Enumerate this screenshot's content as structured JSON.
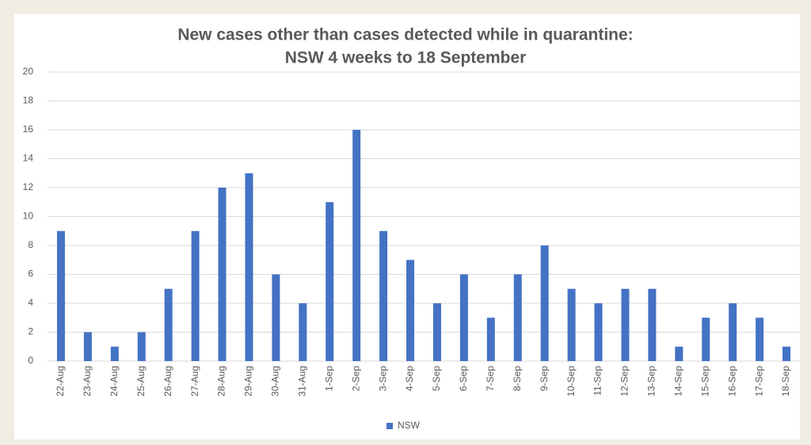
{
  "chart_data": {
    "type": "bar",
    "title": [
      "New cases other than cases detected while in quarantine:",
      "NSW  4 weeks to 18 September"
    ],
    "categories": [
      "22-Aug",
      "23-Aug",
      "24-Aug",
      "25-Aug",
      "26-Aug",
      "27-Aug",
      "28-Aug",
      "29-Aug",
      "30-Aug",
      "31-Aug",
      "1-Sep",
      "2-Sep",
      "3-Sep",
      "4-Sep",
      "5-Sep",
      "6-Sep",
      "7-Sep",
      "8-Sep",
      "9-Sep",
      "10-Sep",
      "11-Sep",
      "12-Sep",
      "13-Sep",
      "14-Sep",
      "15-Sep",
      "16-Sep",
      "17-Sep",
      "18-Sep"
    ],
    "series": [
      {
        "name": "NSW",
        "color": "#4472c4",
        "values": [
          9,
          2,
          1,
          2,
          5,
          9,
          12,
          13,
          6,
          4,
          11,
          16,
          9,
          7,
          4,
          6,
          3,
          6,
          8,
          5,
          4,
          5,
          5,
          1,
          3,
          4,
          3,
          1
        ]
      }
    ],
    "ylim": [
      0,
      20
    ],
    "yticks": [
      0,
      2,
      4,
      6,
      8,
      10,
      12,
      14,
      16,
      18,
      20
    ],
    "grid": true,
    "legend": "bottom"
  }
}
